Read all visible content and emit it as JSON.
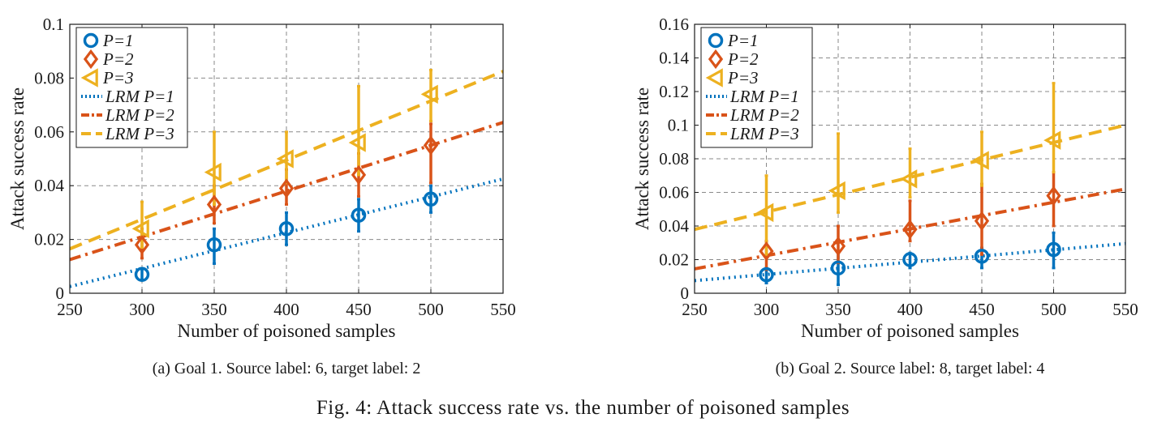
{
  "figure_caption": "Fig. 4: Attack success rate vs. the number of poisoned samples",
  "colors": {
    "p1": "#0072BD",
    "p2": "#D95319",
    "p3": "#EDB120",
    "grid": "#8a8a8a",
    "axis": "#1a1a1a"
  },
  "chart_data": [
    {
      "type": "line",
      "caption": "(a) Goal 1. Source label: 6, target label: 2",
      "xlabel": "Number of poisoned samples",
      "ylabel": "Attack success rate",
      "xlim": [
        250,
        550
      ],
      "ylim": [
        0,
        0.1
      ],
      "xticks": [
        "250",
        "300",
        "350",
        "400",
        "450",
        "500",
        "550"
      ],
      "yticks": [
        "0",
        "0.02",
        "0.04",
        "0.06",
        "0.08",
        "0.1"
      ],
      "grid": true,
      "legend_position": "top-left",
      "x": [
        300,
        350,
        400,
        450,
        500
      ],
      "series": [
        {
          "name": "P=1",
          "marker": "circle",
          "color": "#0072BD",
          "values": [
            0.007,
            0.018,
            0.024,
            0.029,
            0.035
          ],
          "err_low": [
            0.005,
            0.011,
            0.018,
            0.023,
            0.03
          ],
          "err_high": [
            0.009,
            0.024,
            0.03,
            0.035,
            0.04
          ]
        },
        {
          "name": "P=2",
          "marker": "diamond",
          "color": "#D95319",
          "values": [
            0.018,
            0.033,
            0.039,
            0.044,
            0.055
          ],
          "err_low": [
            0.013,
            0.026,
            0.033,
            0.036,
            0.041
          ],
          "err_high": [
            0.024,
            0.04,
            0.046,
            0.052,
            0.063
          ]
        },
        {
          "name": "P=3",
          "marker": "triangle-left",
          "color": "#EDB120",
          "values": [
            0.024,
            0.045,
            0.05,
            0.056,
            0.074
          ],
          "err_low": [
            0.017,
            0.033,
            0.041,
            0.044,
            0.064
          ],
          "err_high": [
            0.034,
            0.06,
            0.06,
            0.077,
            0.083
          ]
        }
      ],
      "regression": [
        {
          "name": "LRM P=1",
          "style": "dotted",
          "color": "#0072BD",
          "x": [
            250,
            550
          ],
          "y": [
            0.0025,
            0.0425
          ]
        },
        {
          "name": "LRM P=2",
          "style": "dashdot",
          "color": "#D95319",
          "x": [
            250,
            550
          ],
          "y": [
            0.0125,
            0.0635
          ]
        },
        {
          "name": "LRM P=3",
          "style": "dashed",
          "color": "#EDB120",
          "x": [
            250,
            550
          ],
          "y": [
            0.0165,
            0.0825
          ]
        }
      ]
    },
    {
      "type": "line",
      "caption": "(b) Goal 2. Source label: 8, target label: 4",
      "xlabel": "Number of poisoned samples",
      "ylabel": "Attack success rate",
      "xlim": [
        250,
        550
      ],
      "ylim": [
        0,
        0.16
      ],
      "xticks": [
        "250",
        "300",
        "350",
        "400",
        "450",
        "500",
        "550"
      ],
      "yticks": [
        "0",
        "0.02",
        "0.04",
        "0.06",
        "0.08",
        "0.1",
        "0.12",
        "0.14",
        "0.16"
      ],
      "grid": true,
      "legend_position": "top-left",
      "x": [
        300,
        350,
        400,
        450,
        500
      ],
      "series": [
        {
          "name": "P=1",
          "marker": "circle",
          "color": "#0072BD",
          "values": [
            0.011,
            0.015,
            0.02,
            0.022,
            0.026
          ],
          "err_low": [
            0.006,
            0.005,
            0.015,
            0.015,
            0.015
          ],
          "err_high": [
            0.015,
            0.024,
            0.024,
            0.027,
            0.036
          ]
        },
        {
          "name": "P=2",
          "marker": "diamond",
          "color": "#D95319",
          "values": [
            0.025,
            0.028,
            0.038,
            0.043,
            0.058
          ],
          "err_low": [
            0.014,
            0.018,
            0.031,
            0.023,
            0.04
          ],
          "err_high": [
            0.031,
            0.04,
            0.055,
            0.065,
            0.072
          ]
        },
        {
          "name": "P=3",
          "marker": "triangle-left",
          "color": "#EDB120",
          "values": [
            0.048,
            0.061,
            0.068,
            0.079,
            0.091
          ],
          "err_low": [
            0.023,
            0.048,
            0.057,
            0.064,
            0.072
          ],
          "err_high": [
            0.07,
            0.095,
            0.086,
            0.096,
            0.125
          ]
        }
      ],
      "regression": [
        {
          "name": "LRM P=1",
          "style": "dotted",
          "color": "#0072BD",
          "x": [
            250,
            550
          ],
          "y": [
            0.0075,
            0.0295
          ]
        },
        {
          "name": "LRM P=2",
          "style": "dashdot",
          "color": "#D95319",
          "x": [
            250,
            550
          ],
          "y": [
            0.0145,
            0.062
          ]
        },
        {
          "name": "LRM P=3",
          "style": "dashed",
          "color": "#EDB120",
          "x": [
            250,
            550
          ],
          "y": [
            0.038,
            0.1
          ]
        }
      ]
    }
  ]
}
